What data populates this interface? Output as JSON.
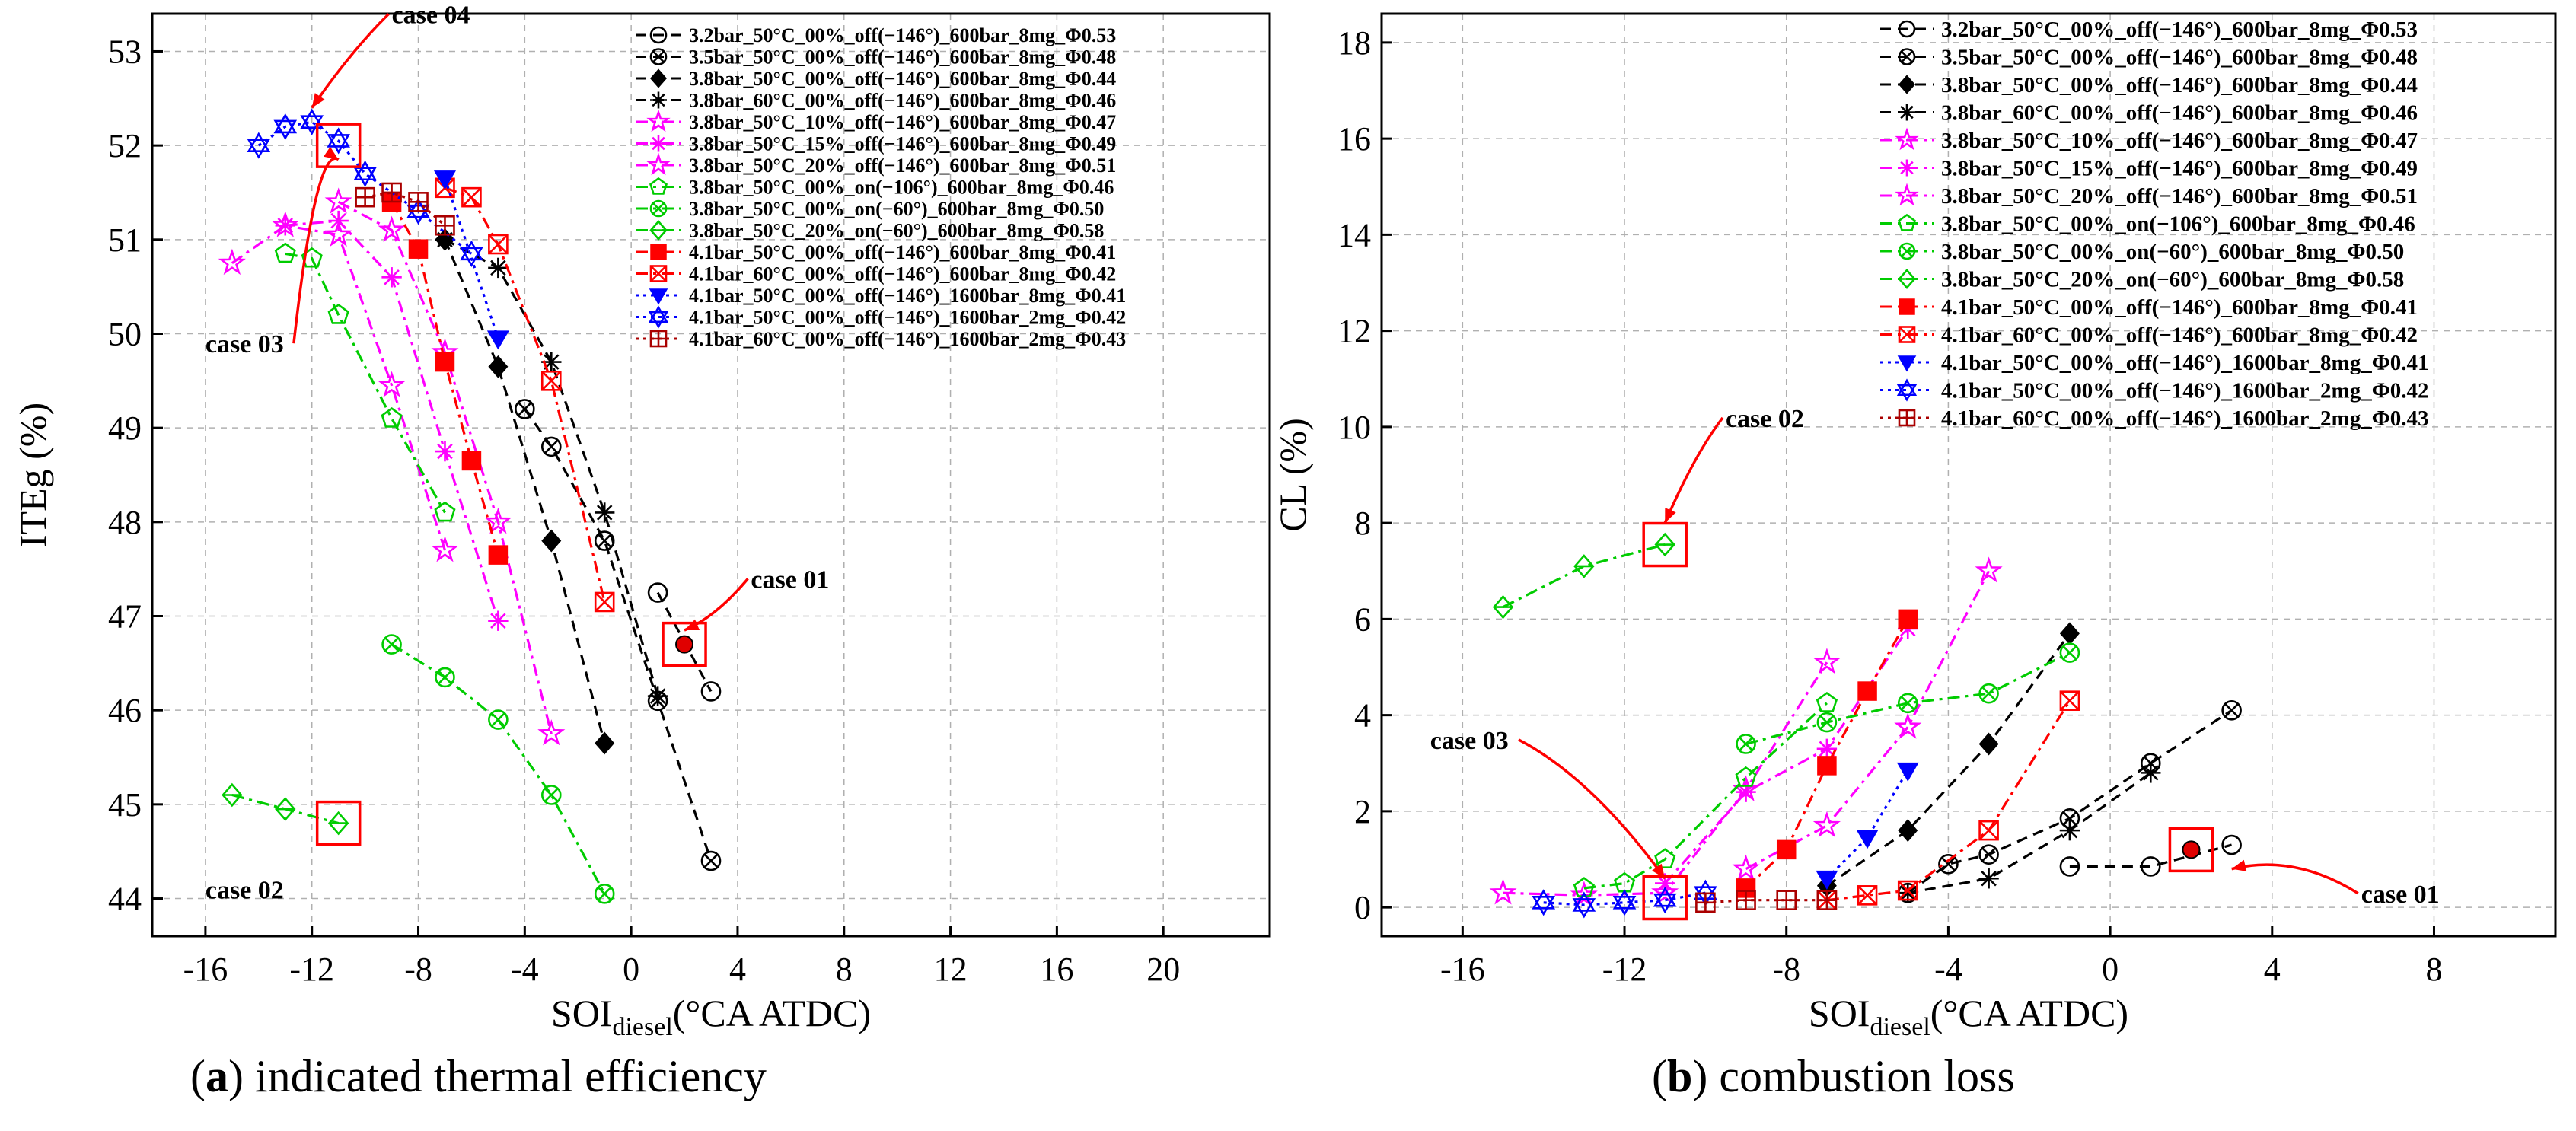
{
  "captions": [
    {
      "letter": "a",
      "text": ") indicated thermal efficiency",
      "open": "("
    },
    {
      "letter": "b",
      "text": ") combustion loss",
      "open": "("
    }
  ],
  "chart_data": [
    {
      "type": "line",
      "panel": "a",
      "xlabel_main": "SOI",
      "xlabel_sub": "diesel",
      "xlabel_rest": "(°CA ATDC)",
      "ylabel": "ITEg (%)",
      "xlim": [
        -18,
        24
      ],
      "ylim": [
        43.6,
        53.4
      ],
      "xticks": [
        -16,
        -12,
        -8,
        -4,
        0,
        4,
        8,
        12,
        16,
        20
      ],
      "xticklabels": [
        "-16",
        "-12",
        "-8",
        "-4",
        "0",
        "4",
        "8",
        "12",
        "16",
        "20"
      ],
      "yticks": [
        44,
        45,
        46,
        47,
        48,
        49,
        50,
        51,
        52,
        53
      ],
      "yticklabels": [
        "44",
        "45",
        "46",
        "47",
        "48",
        "49",
        "50",
        "51",
        "52",
        "53"
      ],
      "grid": true,
      "legend_position": "top-right",
      "series": [
        {
          "name": "3.2bar_50°C_00%_off(−146°)_600bar_8mg_Φ0.53",
          "color": "#000000",
          "dash": "dash",
          "marker": "circle-open",
          "x": [
            1,
            3
          ],
          "y": [
            47.25,
            46.2
          ]
        },
        {
          "name": "3.5bar_50°C_00%_off(−146°)_600bar_8mg_Φ0.48",
          "color": "#000000",
          "dash": "dash",
          "marker": "circle-x",
          "x": [
            -4,
            -3,
            -1,
            1,
            3
          ],
          "y": [
            49.2,
            48.8,
            47.8,
            46.1,
            44.4
          ]
        },
        {
          "name": "3.8bar_50°C_00%_off(−146°)_600bar_8mg_Φ0.44",
          "color": "#000000",
          "dash": "dash",
          "marker": "diamond-filled",
          "x": [
            -7,
            -5,
            -3,
            -1
          ],
          "y": [
            51.0,
            49.65,
            47.8,
            45.65
          ]
        },
        {
          "name": "3.8bar_60°C_00%_off(−146°)_600bar_8mg_Φ0.46",
          "color": "#000000",
          "dash": "dash",
          "marker": "asterisk",
          "x": [
            -7,
            -5,
            -3,
            -1,
            1
          ],
          "y": [
            51.0,
            50.7,
            49.7,
            48.1,
            46.15
          ]
        },
        {
          "name": "3.8bar_50°C_10%_off(−146°)_600bar_8mg_Φ0.47",
          "color": "#ff00ff",
          "dash": "dashdot",
          "marker": "star-open",
          "x": [
            -11,
            -9,
            -7,
            -5,
            -3
          ],
          "y": [
            51.4,
            51.1,
            49.8,
            48.0,
            45.75
          ]
        },
        {
          "name": "3.8bar_50°C_15%_off(−146°)_600bar_8mg_Φ0.49",
          "color": "#ff00ff",
          "dash": "dashdot",
          "marker": "asterisk",
          "x": [
            -13,
            -11,
            -9,
            -7,
            -5
          ],
          "y": [
            51.15,
            51.2,
            50.6,
            48.75,
            46.95
          ]
        },
        {
          "name": "3.8bar_50°C_20%_off(−146°)_600bar_8mg_Φ0.51",
          "color": "#ff00ff",
          "dash": "dashdot",
          "marker": "star-open",
          "x": [
            -15,
            -13,
            -11,
            -9,
            -7
          ],
          "y": [
            50.75,
            51.15,
            51.05,
            49.45,
            47.7
          ]
        },
        {
          "name": "3.8bar_50°C_00%_on(−106°)_600bar_8mg_Φ0.46",
          "color": "#00cc00",
          "dash": "dashdot",
          "marker": "pentagon-open",
          "x": [
            -13,
            -12,
            -11,
            -9,
            -7
          ],
          "y": [
            50.85,
            50.8,
            50.2,
            49.1,
            48.1
          ]
        },
        {
          "name": "3.8bar_50°C_00%_on(−60°)_600bar_8mg_Φ0.50",
          "color": "#00cc00",
          "dash": "dashdot",
          "marker": "circle-x",
          "x": [
            -9,
            -7,
            -5,
            -3,
            -1
          ],
          "y": [
            46.7,
            46.35,
            45.9,
            45.1,
            44.05
          ]
        },
        {
          "name": "3.8bar_50°C_20%_on(−60°)_600bar_8mg_Φ0.58",
          "color": "#00cc00",
          "dash": "dashdot",
          "marker": "diamond-open",
          "x": [
            -15,
            -13,
            -11
          ],
          "y": [
            45.1,
            44.95,
            44.8
          ]
        },
        {
          "name": "4.1bar_50°C_00%_off(−146°)_600bar_8mg_Φ0.41",
          "color": "#ff0000",
          "dash": "dashdot",
          "marker": "square-filled",
          "x": [
            -9,
            -8,
            -7,
            -6,
            -5
          ],
          "y": [
            51.4,
            50.9,
            49.7,
            48.65,
            47.65
          ]
        },
        {
          "name": "4.1bar_60°C_00%_off(−146°)_600bar_8mg_Φ0.42",
          "color": "#ff0000",
          "dash": "dashdot",
          "marker": "square-x",
          "x": [
            -7,
            -6,
            -5,
            -3,
            -1
          ],
          "y": [
            51.55,
            51.45,
            50.95,
            49.5,
            47.15
          ]
        },
        {
          "name": "4.1bar_50°C_00%_off(−146°)_1600bar_8mg_Φ0.41",
          "color": "#0000ff",
          "dash": "dot",
          "marker": "triangle-down-filled",
          "x": [
            -7,
            -5
          ],
          "y": [
            51.65,
            49.95
          ]
        },
        {
          "name": "4.1bar_50°C_00%_off(−146°)_1600bar_2mg_Φ0.42",
          "color": "#0000ff",
          "dash": "dot",
          "marker": "triangle-star",
          "x": [
            -14,
            -13,
            -12,
            -11,
            -10,
            -8,
            -6
          ],
          "y": [
            52.0,
            52.2,
            52.25,
            52.05,
            51.7,
            51.3,
            50.85
          ]
        },
        {
          "name": "4.1bar_60°C_00%_off(−146°)_1600bar_2mg_Φ0.43",
          "color": "#aa0000",
          "dash": "dot",
          "marker": "square-cross",
          "x": [
            -10,
            -9,
            -8,
            -7
          ],
          "y": [
            51.45,
            51.5,
            51.4,
            51.15
          ]
        }
      ],
      "highlight_boxes": [
        {
          "x": -11,
          "y": 52.0
        },
        {
          "x": 2,
          "y": 46.7
        },
        {
          "x": -11,
          "y": 44.8
        }
      ],
      "highlight_point": {
        "x": 2,
        "y": 46.7
      },
      "annotations": [
        {
          "text": "case 04",
          "x": -9,
          "y": 53.3,
          "arrow_to": [
            -12,
            52.4
          ]
        },
        {
          "text": "case 03",
          "x": -16,
          "y": 49.8,
          "arrow_to": [
            -11,
            51.85
          ]
        },
        {
          "text": "case 01",
          "x": 4.5,
          "y": 47.3,
          "arrow_to": [
            2,
            46.85
          ]
        },
        {
          "text": "case 02",
          "x": -16,
          "y": 44.0,
          "arrow_to": null
        }
      ]
    },
    {
      "type": "line",
      "panel": "b",
      "xlabel_main": "SOI",
      "xlabel_sub": "diesel",
      "xlabel_rest": "(°CA ATDC)",
      "ylabel": "CL (%)",
      "xlim": [
        -18,
        11
      ],
      "ylim": [
        -0.6,
        18.6
      ],
      "xticks": [
        -16,
        -12,
        -8,
        -4,
        0,
        4,
        8
      ],
      "xticklabels": [
        "-16",
        "-12",
        "-8",
        "-4",
        "0",
        "4",
        "8"
      ],
      "yticks": [
        0,
        2,
        4,
        6,
        8,
        10,
        12,
        14,
        16,
        18
      ],
      "yticklabels": [
        "0",
        "2",
        "4",
        "6",
        "8",
        "10",
        "12",
        "14",
        "16",
        "18"
      ],
      "grid": true,
      "legend_position": "top-right",
      "series": [
        {
          "name": "3.2bar_50°C_00%_off(−146°)_600bar_8mg_Φ0.53",
          "color": "#000000",
          "dash": "dash",
          "marker": "circle-open",
          "x": [
            -1,
            1,
            3
          ],
          "y": [
            0.85,
            0.85,
            1.3
          ]
        },
        {
          "name": "3.5bar_50°C_00%_off(−146°)_600bar_8mg_Φ0.48",
          "color": "#000000",
          "dash": "dash",
          "marker": "circle-x",
          "x": [
            -5,
            -4,
            -3,
            -1,
            1,
            3
          ],
          "y": [
            0.3,
            0.9,
            1.1,
            1.85,
            3.0,
            4.1
          ]
        },
        {
          "name": "3.8bar_50°C_00%_off(−146°)_600bar_8mg_Φ0.44",
          "color": "#000000",
          "dash": "dash",
          "marker": "diamond-filled",
          "x": [
            -7,
            -5,
            -3,
            -1
          ],
          "y": [
            0.45,
            1.6,
            3.4,
            5.7
          ]
        },
        {
          "name": "3.8bar_60°C_00%_off(−146°)_600bar_8mg_Φ0.46",
          "color": "#000000",
          "dash": "dash",
          "marker": "asterisk",
          "x": [
            -5,
            -3,
            -1,
            1
          ],
          "y": [
            0.3,
            0.6,
            1.6,
            2.8
          ]
        },
        {
          "name": "3.8bar_50°C_10%_off(−146°)_600bar_8mg_Φ0.47",
          "color": "#ff00ff",
          "dash": "dashdot",
          "marker": "star-open",
          "x": [
            -9,
            -7,
            -5,
            -3
          ],
          "y": [
            0.8,
            1.7,
            3.75,
            7.0
          ]
        },
        {
          "name": "3.8bar_50°C_15%_off(−146°)_600bar_8mg_Φ0.49",
          "color": "#ff00ff",
          "dash": "dashdot",
          "marker": "asterisk",
          "x": [
            -11,
            -9,
            -7,
            -5
          ],
          "y": [
            0.5,
            2.4,
            3.3,
            5.8
          ]
        },
        {
          "name": "3.8bar_50°C_20%_off(−146°)_600bar_8mg_Φ0.51",
          "color": "#ff00ff",
          "dash": "dashdot",
          "marker": "star-open",
          "x": [
            -15,
            -13,
            -11,
            -9,
            -7
          ],
          "y": [
            0.3,
            0.25,
            0.3,
            2.45,
            5.1
          ]
        },
        {
          "name": "3.8bar_50°C_00%_on(−106°)_600bar_8mg_Φ0.46",
          "color": "#00cc00",
          "dash": "dashdot",
          "marker": "pentagon-open",
          "x": [
            -13,
            -12,
            -11,
            -9,
            -7
          ],
          "y": [
            0.4,
            0.5,
            1.0,
            2.7,
            4.25
          ]
        },
        {
          "name": "3.8bar_50°C_00%_on(−60°)_600bar_8mg_Φ0.50",
          "color": "#00cc00",
          "dash": "dashdot",
          "marker": "circle-x",
          "x": [
            -9,
            -7,
            -5,
            -3,
            -1
          ],
          "y": [
            3.4,
            3.85,
            4.25,
            4.45,
            5.3
          ]
        },
        {
          "name": "3.8bar_50°C_20%_on(−60°)_600bar_8mg_Φ0.58",
          "color": "#00cc00",
          "dash": "dashdot",
          "marker": "diamond-open",
          "x": [
            -15,
            -13,
            -11
          ],
          "y": [
            6.25,
            7.1,
            7.55
          ]
        },
        {
          "name": "4.1bar_50°C_00%_off(−146°)_600bar_8mg_Φ0.41",
          "color": "#ff0000",
          "dash": "dashdot",
          "marker": "square-filled",
          "x": [
            -9,
            -8,
            -7,
            -6,
            -5
          ],
          "y": [
            0.4,
            1.2,
            2.95,
            4.5,
            6.0
          ]
        },
        {
          "name": "4.1bar_60°C_00%_off(−146°)_600bar_8mg_Φ0.42",
          "color": "#ff0000",
          "dash": "dashdot",
          "marker": "square-x",
          "x": [
            -7,
            -6,
            -5,
            -3,
            -1
          ],
          "y": [
            0.15,
            0.25,
            0.35,
            1.6,
            4.3
          ]
        },
        {
          "name": "4.1bar_50°C_00%_off(−146°)_1600bar_8mg_Φ0.41",
          "color": "#0000ff",
          "dash": "dot",
          "marker": "triangle-down-filled",
          "x": [
            -7,
            -6,
            -5
          ],
          "y": [
            0.6,
            1.45,
            2.85
          ]
        },
        {
          "name": "4.1bar_50°C_00%_off(−146°)_1600bar_2mg_Φ0.42",
          "color": "#0000ff",
          "dash": "dot",
          "marker": "triangle-star",
          "x": [
            -14,
            -13,
            -12,
            -11,
            -10
          ],
          "y": [
            0.1,
            0.05,
            0.1,
            0.15,
            0.3
          ]
        },
        {
          "name": "4.1bar_60°C_00%_off(−146°)_1600bar_2mg_Φ0.43",
          "color": "#aa0000",
          "dash": "dot",
          "marker": "square-cross",
          "x": [
            -10,
            -9,
            -8,
            -7
          ],
          "y": [
            0.1,
            0.15,
            0.15,
            0.15
          ]
        }
      ],
      "highlight_boxes": [
        {
          "x": -11,
          "y": 7.55
        },
        {
          "x": -11,
          "y": 0.2
        },
        {
          "x": 2,
          "y": 1.2
        }
      ],
      "highlight_point": {
        "x": 2,
        "y": 1.2
      },
      "annotations": [
        {
          "text": "case 02",
          "x": -9.5,
          "y": 10.0,
          "arrow_to": [
            -11,
            8.0
          ]
        },
        {
          "text": "case 03",
          "x": -16.8,
          "y": 3.3,
          "arrow_to": [
            -11,
            0.6
          ]
        },
        {
          "text": "case 01",
          "x": 6.2,
          "y": 0.1,
          "arrow_to": [
            3.0,
            0.8
          ]
        }
      ]
    }
  ]
}
